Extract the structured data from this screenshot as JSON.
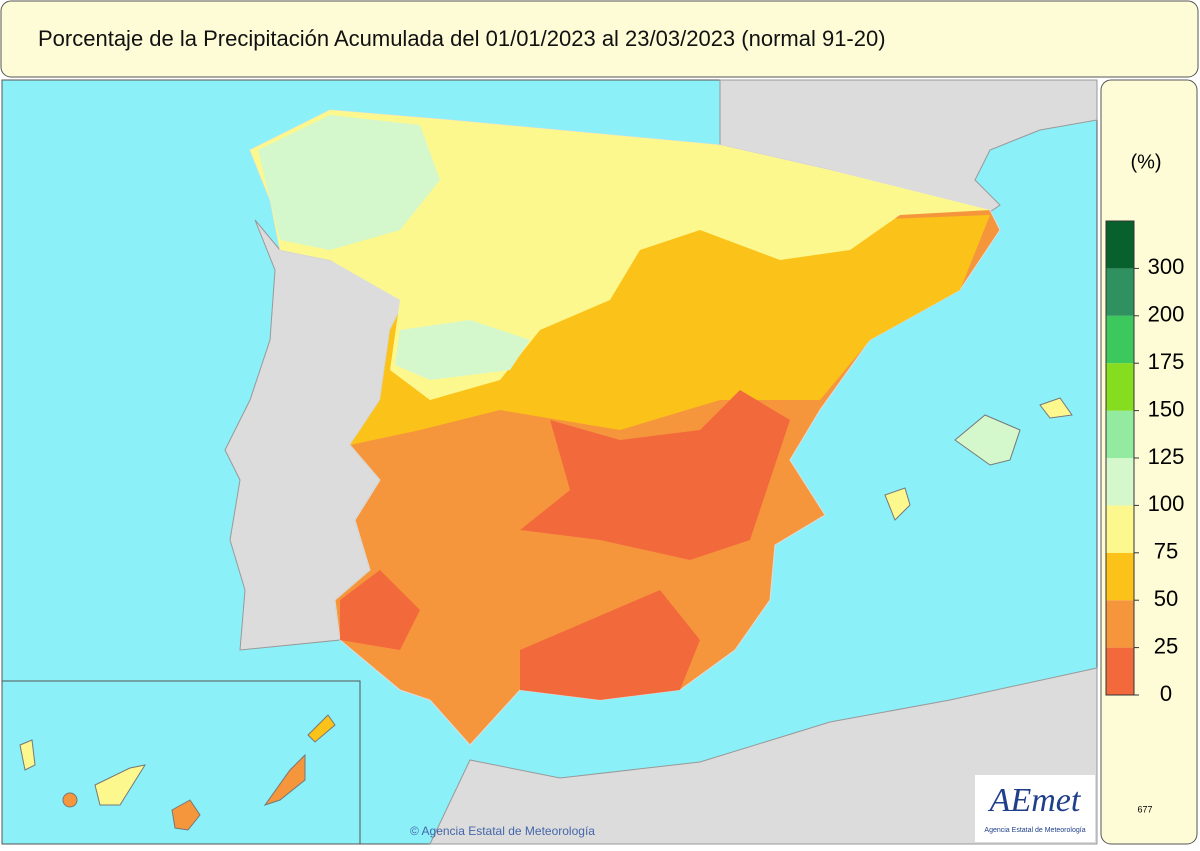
{
  "header": {
    "title": "Porcentaje de la Precipitación Acumulada  del 01/01/2023 al 23/03/2023  (normal 91-20)"
  },
  "legend": {
    "unit": "(%)",
    "ticks": [
      0,
      25,
      50,
      75,
      100,
      125,
      150,
      175,
      200,
      300
    ],
    "colors": [
      "#f26a3c",
      "#f6963c",
      "#fbc21a",
      "#fdf88e",
      "#d4f7cc",
      "#93eba0",
      "#86dc1e",
      "#3cc85c",
      "#2f9060",
      "#08602c"
    ]
  },
  "map": {
    "copyright": "© Agencia Estatal de Meteorología",
    "logo": "AEmet",
    "logo_subtitle": "Agencia Estatal de Meteorología",
    "code": "677"
  }
}
